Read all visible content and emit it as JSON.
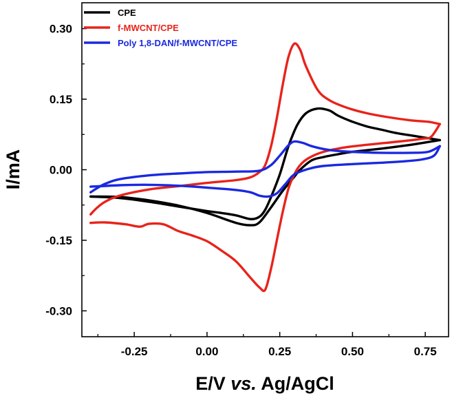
{
  "chart_data": {
    "type": "line",
    "title": "",
    "xlabel": {
      "main": "E/V ",
      "italic": "vs.",
      "tail": " Ag/AgCl"
    },
    "ylabel": "I/mA",
    "xlim": [
      -0.43,
      0.83
    ],
    "ylim": [
      -0.355,
      0.355
    ],
    "x_ticks": [
      -0.25,
      0.0,
      0.25,
      0.5,
      0.75
    ],
    "x_tick_labels": [
      "-0.25",
      "0.00",
      "0.25",
      "0.50",
      "0.75"
    ],
    "y_ticks": [
      0.3,
      0.15,
      0.0,
      -0.15,
      -0.3
    ],
    "y_tick_labels": [
      "0.30",
      "0.15",
      "0.00",
      "-0.15",
      "-0.30"
    ],
    "legend_position": "top-left",
    "series": [
      {
        "name": "CPE",
        "color": "#000000",
        "forward": [
          [
            -0.4,
            -0.057
          ],
          [
            -0.3,
            -0.06
          ],
          [
            -0.2,
            -0.068
          ],
          [
            -0.1,
            -0.078
          ],
          [
            0.0,
            -0.088
          ],
          [
            0.05,
            -0.092
          ],
          [
            0.1,
            -0.097
          ],
          [
            0.15,
            -0.105
          ],
          [
            0.18,
            -0.1
          ],
          [
            0.2,
            -0.085
          ],
          [
            0.22,
            -0.058
          ],
          [
            0.25,
            -0.01
          ],
          [
            0.28,
            0.05
          ],
          [
            0.31,
            0.095
          ],
          [
            0.34,
            0.12
          ],
          [
            0.38,
            0.13
          ],
          [
            0.42,
            0.126
          ],
          [
            0.45,
            0.115
          ],
          [
            0.5,
            0.102
          ],
          [
            0.55,
            0.092
          ],
          [
            0.6,
            0.085
          ],
          [
            0.65,
            0.078
          ],
          [
            0.7,
            0.073
          ],
          [
            0.75,
            0.068
          ],
          [
            0.8,
            0.063
          ]
        ],
        "reverse": [
          [
            0.8,
            0.063
          ],
          [
            0.75,
            0.058
          ],
          [
            0.7,
            0.053
          ],
          [
            0.6,
            0.045
          ],
          [
            0.5,
            0.038
          ],
          [
            0.45,
            0.033
          ],
          [
            0.4,
            0.027
          ],
          [
            0.36,
            0.02
          ],
          [
            0.32,
            0.0
          ],
          [
            0.3,
            -0.015
          ],
          [
            0.26,
            -0.045
          ],
          [
            0.22,
            -0.08
          ],
          [
            0.18,
            -0.112
          ],
          [
            0.15,
            -0.118
          ],
          [
            0.1,
            -0.113
          ],
          [
            0.0,
            -0.092
          ],
          [
            -0.1,
            -0.076
          ],
          [
            -0.2,
            -0.065
          ],
          [
            -0.3,
            -0.058
          ],
          [
            -0.4,
            -0.057
          ]
        ]
      },
      {
        "name": "f-MWCNT/CPE",
        "color": "#e8231b",
        "forward": [
          [
            -0.4,
            -0.095
          ],
          [
            -0.38,
            -0.082
          ],
          [
            -0.35,
            -0.068
          ],
          [
            -0.3,
            -0.055
          ],
          [
            -0.2,
            -0.042
          ],
          [
            -0.1,
            -0.035
          ],
          [
            0.0,
            -0.028
          ],
          [
            0.1,
            -0.022
          ],
          [
            0.15,
            -0.016
          ],
          [
            0.18,
            -0.005
          ],
          [
            0.2,
            0.01
          ],
          [
            0.22,
            0.05
          ],
          [
            0.24,
            0.11
          ],
          [
            0.26,
            0.18
          ],
          [
            0.28,
            0.24
          ],
          [
            0.3,
            0.268
          ],
          [
            0.32,
            0.255
          ],
          [
            0.34,
            0.22
          ],
          [
            0.38,
            0.17
          ],
          [
            0.42,
            0.148
          ],
          [
            0.48,
            0.132
          ],
          [
            0.55,
            0.12
          ],
          [
            0.62,
            0.112
          ],
          [
            0.7,
            0.105
          ],
          [
            0.76,
            0.102
          ],
          [
            0.8,
            0.097
          ]
        ],
        "reverse": [
          [
            0.8,
            0.097
          ],
          [
            0.77,
            0.07
          ],
          [
            0.74,
            0.066
          ],
          [
            0.66,
            0.06
          ],
          [
            0.58,
            0.055
          ],
          [
            0.48,
            0.048
          ],
          [
            0.4,
            0.038
          ],
          [
            0.35,
            0.025
          ],
          [
            0.32,
            0.01
          ],
          [
            0.3,
            -0.01
          ],
          [
            0.28,
            -0.04
          ],
          [
            0.26,
            -0.09
          ],
          [
            0.24,
            -0.15
          ],
          [
            0.22,
            -0.21
          ],
          [
            0.2,
            -0.255
          ],
          [
            0.18,
            -0.25
          ],
          [
            0.15,
            -0.23
          ],
          [
            0.1,
            -0.195
          ],
          [
            0.05,
            -0.172
          ],
          [
            0.0,
            -0.152
          ],
          [
            -0.05,
            -0.14
          ],
          [
            -0.1,
            -0.13
          ],
          [
            -0.15,
            -0.116
          ],
          [
            -0.2,
            -0.115
          ],
          [
            -0.23,
            -0.121
          ],
          [
            -0.28,
            -0.116
          ],
          [
            -0.35,
            -0.112
          ],
          [
            -0.4,
            -0.113
          ]
        ]
      },
      {
        "name": "Poly 1,8-DAN/f-MWCNT/CPE",
        "color": "#1a29e0",
        "forward": [
          [
            -0.4,
            -0.048
          ],
          [
            -0.38,
            -0.04
          ],
          [
            -0.35,
            -0.03
          ],
          [
            -0.3,
            -0.02
          ],
          [
            -0.2,
            -0.012
          ],
          [
            -0.1,
            -0.008
          ],
          [
            0.0,
            -0.005
          ],
          [
            0.1,
            -0.004
          ],
          [
            0.18,
            -0.002
          ],
          [
            0.22,
            0.01
          ],
          [
            0.25,
            0.03
          ],
          [
            0.28,
            0.052
          ],
          [
            0.3,
            0.06
          ],
          [
            0.33,
            0.057
          ],
          [
            0.36,
            0.05
          ],
          [
            0.42,
            0.042
          ],
          [
            0.5,
            0.038
          ],
          [
            0.6,
            0.036
          ],
          [
            0.7,
            0.036
          ],
          [
            0.76,
            0.038
          ],
          [
            0.8,
            0.05
          ]
        ],
        "reverse": [
          [
            0.8,
            0.05
          ],
          [
            0.78,
            0.03
          ],
          [
            0.74,
            0.022
          ],
          [
            0.68,
            0.018
          ],
          [
            0.6,
            0.015
          ],
          [
            0.5,
            0.012
          ],
          [
            0.4,
            0.008
          ],
          [
            0.35,
            0.002
          ],
          [
            0.3,
            -0.01
          ],
          [
            0.27,
            -0.03
          ],
          [
            0.24,
            -0.05
          ],
          [
            0.21,
            -0.057
          ],
          [
            0.18,
            -0.055
          ],
          [
            0.15,
            -0.048
          ],
          [
            0.1,
            -0.043
          ],
          [
            0.0,
            -0.038
          ],
          [
            -0.1,
            -0.034
          ],
          [
            -0.2,
            -0.032
          ],
          [
            -0.3,
            -0.033
          ],
          [
            -0.4,
            -0.036
          ]
        ]
      }
    ]
  }
}
